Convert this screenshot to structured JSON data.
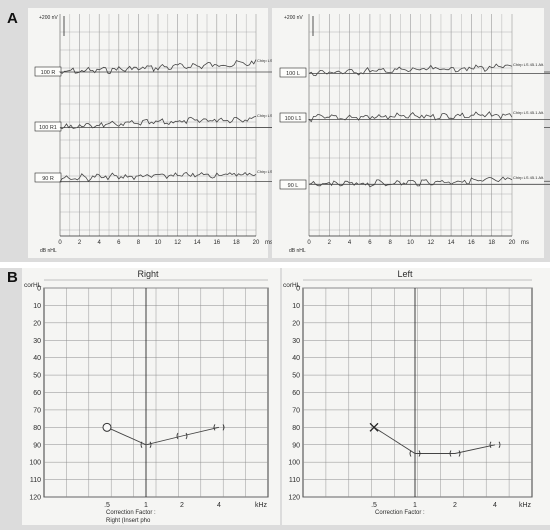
{
  "panels": {
    "a_letter": "A",
    "b_letter": "B"
  },
  "colors": {
    "background": "#dcdcdc",
    "paper": "#f5f5f3",
    "grid_abr": "#9a9a9a",
    "grid_audio": "#8c8c8c",
    "trace": "#444444",
    "ink": "#2a2a2a"
  },
  "chart_data": [
    {
      "type": "line",
      "panel": "A-right-ear ABR",
      "scale_label": "+200 nV",
      "x": [
        0,
        2,
        4,
        6,
        8,
        10,
        12,
        14,
        16,
        18,
        20
      ],
      "x_tick_labels": [
        "0",
        "2",
        "4",
        "6",
        "8",
        "10",
        "12",
        "14",
        "16",
        "18",
        "20"
      ],
      "xlabel_unit": "ms",
      "xlabel_prefix": "dB nHL",
      "xlim": [
        0,
        20
      ],
      "grid": true,
      "series": [
        {
          "name": "100 R",
          "trace_note": "Chirp LS 45.1 Alt."
        },
        {
          "name": "100 R1",
          "trace_note": "Chirp LS 45.1 Alt."
        },
        {
          "name": "90 R",
          "trace_note": "Chirp LS 45.1 Alt."
        }
      ]
    },
    {
      "type": "line",
      "panel": "A-left-ear ABR",
      "scale_label": "+200 nV",
      "x": [
        0,
        2,
        4,
        6,
        8,
        10,
        12,
        14,
        16,
        18,
        20
      ],
      "x_tick_labels": [
        "0",
        "2",
        "4",
        "6",
        "8",
        "10",
        "12",
        "14",
        "16",
        "18",
        "20"
      ],
      "xlabel_unit": "ms",
      "xlabel_prefix": "dB nHL",
      "xlim": [
        0,
        20
      ],
      "grid": true,
      "series": [
        {
          "name": "100 L",
          "trace_note": "Chirp LS 45.1 Alt."
        },
        {
          "name": "100 L1",
          "trace_note": "Chirp LS 45.1 Alt."
        },
        {
          "name": "90 L",
          "trace_note": "Chirp LS 45.1 Alt."
        }
      ]
    },
    {
      "type": "line",
      "panel": "B-right audiogram",
      "title": "Right",
      "ylabel": "corHL",
      "y_tick_labels": [
        "0",
        "10",
        "20",
        "30",
        "40",
        "50",
        "60",
        "70",
        "80",
        "90",
        "100",
        "110",
        "120"
      ],
      "ylim": [
        0,
        120
      ],
      "y_inverted": true,
      "x_tick_labels": [
        ".5",
        "1",
        "2",
        "4"
      ],
      "xlabel": "kHz",
      "x_scale": "log",
      "footer": "Correction Factor :",
      "footer2": "Right (Insert pho",
      "series": [
        {
          "symbol": "O",
          "x": [
            0.5,
            1,
            2,
            4
          ],
          "y": [
            80,
            90,
            85,
            80
          ]
        }
      ]
    },
    {
      "type": "line",
      "panel": "B-left audiogram",
      "title": "Left",
      "ylabel": "corHL",
      "y_tick_labels": [
        "0",
        "10",
        "20",
        "30",
        "40",
        "50",
        "60",
        "70",
        "80",
        "90",
        "100",
        "110",
        "120"
      ],
      "ylim": [
        0,
        120
      ],
      "y_inverted": true,
      "x_tick_labels": [
        ".5",
        "1",
        "2",
        "4"
      ],
      "xlabel": "kHz",
      "x_scale": "log",
      "footer": "Correction Factor :",
      "series": [
        {
          "symbol": "X",
          "x": [
            0.5,
            1,
            2,
            4
          ],
          "y": [
            80,
            95,
            95,
            90
          ]
        }
      ]
    }
  ]
}
